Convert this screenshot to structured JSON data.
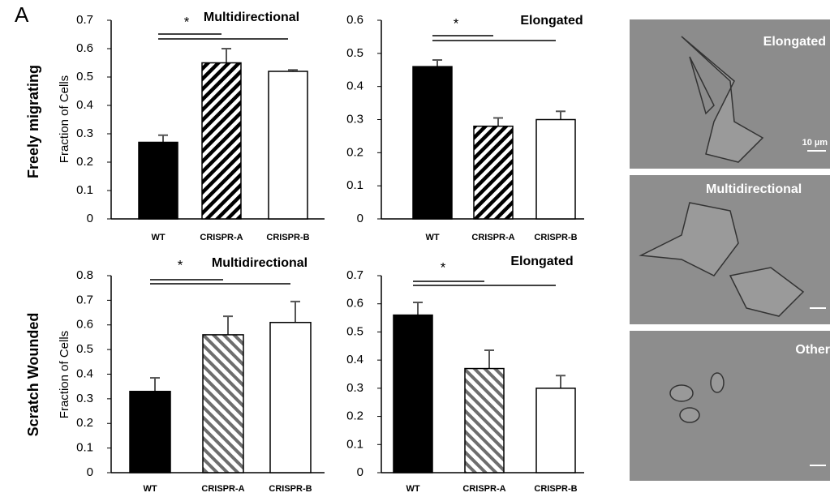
{
  "panel_label": "A",
  "row_labels": [
    "Freely migrating",
    "Scratch Wounded"
  ],
  "images": [
    {
      "label": "Elongated",
      "scale_bar": "10 µm"
    },
    {
      "label": "Multidirectional"
    },
    {
      "label": "Other"
    }
  ],
  "chart_data": [
    {
      "type": "bar",
      "title": "Multidirectional",
      "ylabel": "Fraction of Cells",
      "significance": "*",
      "categories": [
        "WT",
        "CRISPR-A",
        "CRISPR-B"
      ],
      "values": [
        0.27,
        0.55,
        0.52
      ],
      "errors": [
        0.025,
        0.05,
        0.005
      ],
      "colors": [
        "#000000",
        "#000000",
        "#ffffff"
      ],
      "hatch": [
        false,
        true,
        false
      ],
      "ylim": [
        0,
        0.7
      ],
      "yticks": [
        0,
        0.1,
        0.2,
        0.3,
        0.4,
        0.5,
        0.6,
        0.7
      ]
    },
    {
      "type": "bar",
      "title": "Elongated",
      "significance": "*",
      "categories": [
        "WT",
        "CRISPR-A",
        "CRISPR-B"
      ],
      "values": [
        0.46,
        0.28,
        0.3
      ],
      "errors": [
        0.02,
        0.025,
        0.025
      ],
      "colors": [
        "#000000",
        "#000000",
        "#ffffff"
      ],
      "hatch": [
        false,
        true,
        false
      ],
      "ylim": [
        0,
        0.6
      ],
      "yticks": [
        0,
        0.1,
        0.2,
        0.3,
        0.4,
        0.5,
        0.6
      ]
    },
    {
      "type": "bar",
      "title": "Multidirectional",
      "ylabel": "Fraction of Cells",
      "significance": "*",
      "categories": [
        "WT",
        "CRISPR-A",
        "CRISPR-B"
      ],
      "values": [
        0.33,
        0.56,
        0.61
      ],
      "errors": [
        0.055,
        0.075,
        0.085
      ],
      "colors": [
        "#000000",
        "#6e6e6e",
        "#ffffff"
      ],
      "hatch": [
        false,
        true,
        false
      ],
      "ylim": [
        0,
        0.8
      ],
      "yticks": [
        0,
        0.1,
        0.2,
        0.3,
        0.4,
        0.5,
        0.6,
        0.7,
        0.8
      ]
    },
    {
      "type": "bar",
      "title": "Elongated",
      "significance": "*",
      "categories": [
        "WT",
        "CRISPR-A",
        "CRISPR-B"
      ],
      "values": [
        0.56,
        0.37,
        0.3
      ],
      "errors": [
        0.045,
        0.065,
        0.045
      ],
      "colors": [
        "#000000",
        "#6e6e6e",
        "#ffffff"
      ],
      "hatch": [
        false,
        true,
        false
      ],
      "ylim": [
        0,
        0.7
      ],
      "yticks": [
        0,
        0.1,
        0.2,
        0.3,
        0.4,
        0.5,
        0.6,
        0.7
      ]
    }
  ]
}
